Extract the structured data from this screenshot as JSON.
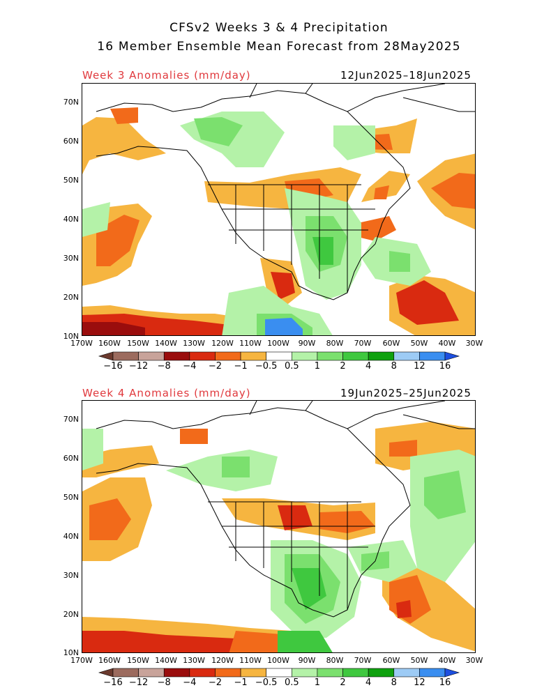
{
  "header": {
    "title_line1": "CFSv2 Weeks 3 & 4 Precipitation",
    "title_line2": "16 Member Ensemble Mean Forecast from 28May2025"
  },
  "panels": [
    {
      "label": "Week 3 Anomalies (mm/day)",
      "dates": "12Jun2025–18Jun2025"
    },
    {
      "label": "Week 4 Anomalies (mm/day)",
      "dates": "19Jun2025–25Jun2025"
    }
  ],
  "axes": {
    "lat_ticks": [
      "70N",
      "60N",
      "50N",
      "40N",
      "30N",
      "20N",
      "10N"
    ],
    "lon_ticks": [
      "170W",
      "160W",
      "150W",
      "140W",
      "130W",
      "120W",
      "110W",
      "100W",
      "90W",
      "80W",
      "70W",
      "60W",
      "50W",
      "40W",
      "30W"
    ]
  },
  "colorbar": {
    "labels": [
      "−16",
      "−12",
      "−8",
      "−4",
      "−2",
      "−1",
      "−0.5",
      "0.5",
      "1",
      "2",
      "4",
      "8",
      "12",
      "16"
    ],
    "colors": [
      "#6b3a2e",
      "#9c6b5e",
      "#c8a39a",
      "#9a0d0d",
      "#d92a10",
      "#f26a1a",
      "#f6b540",
      "#ffffff",
      "#b4f2a8",
      "#7be06e",
      "#3fc83f",
      "#0fa10f",
      "#9dcbf5",
      "#3a8ef0",
      "#1d4fe0"
    ]
  },
  "map_colors": {
    "dry_light": "#f6b540",
    "dry_med": "#f26a1a",
    "dry_strong": "#d92a10",
    "dry_extreme": "#9a0d0d",
    "wet_light": "#b4f2a8",
    "wet_med": "#7be06e",
    "wet_strong": "#3fc83f",
    "wet_deep": "#0fa10f",
    "wet_blue": "#3a8ef0"
  }
}
